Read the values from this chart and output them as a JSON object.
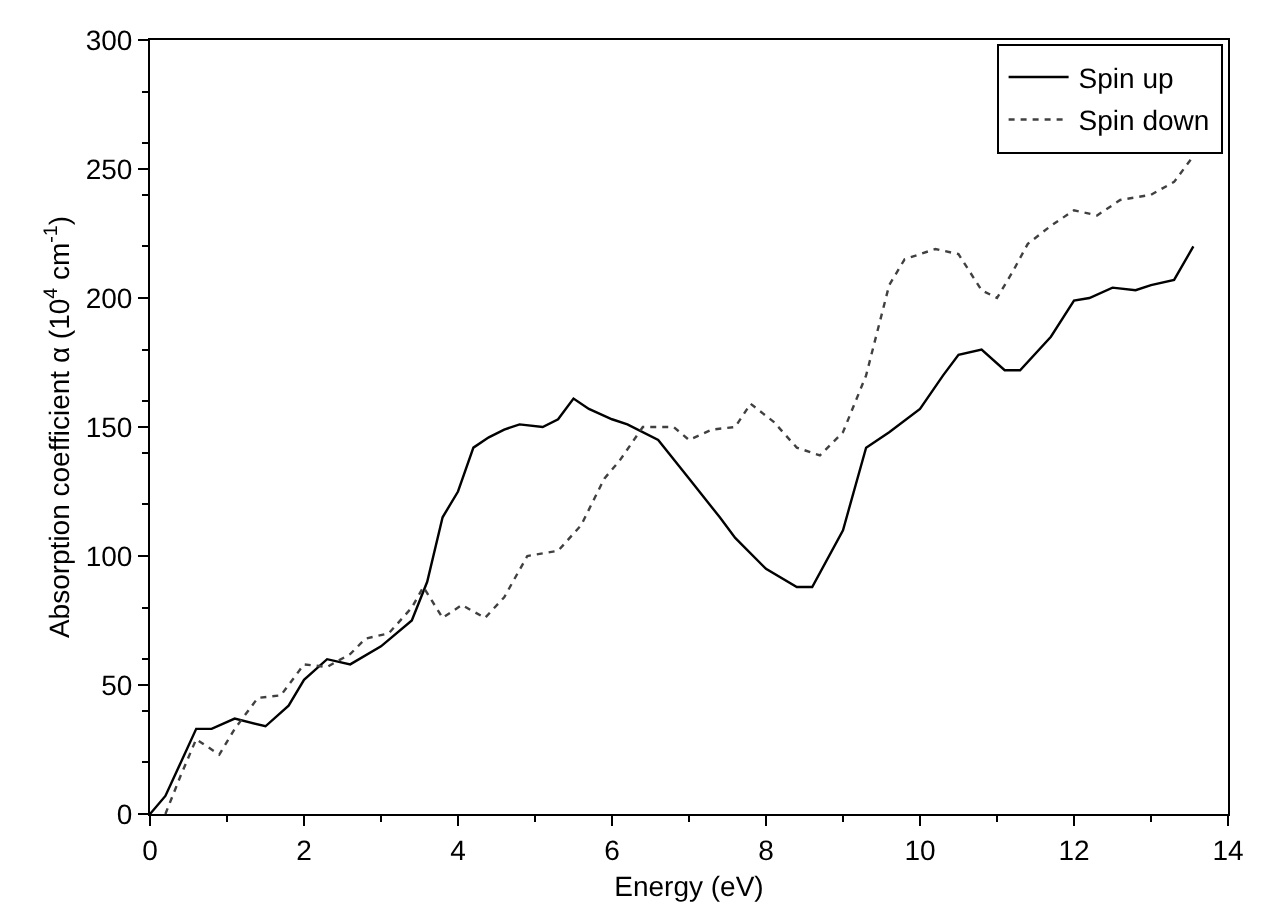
{
  "chart_data": {
    "type": "line",
    "xlabel": "Energy (eV)",
    "ylabel": "Absorption coefficient α (10$^{4}$ cm$^{-1}$)",
    "xlim": [
      0,
      14
    ],
    "xticks": [
      0,
      2,
      4,
      6,
      8,
      10,
      12,
      14
    ],
    "ylim": [
      0,
      300
    ],
    "yticks": [
      0,
      50,
      100,
      150,
      200,
      250,
      300
    ],
    "legend": "top right",
    "marker": "none",
    "series": [
      {
        "name": "Spin up",
        "color": "#000000",
        "line_style": "solid",
        "x": [
          0,
          0.2,
          0.4,
          0.6,
          0.8,
          1.1,
          1.5,
          1.8,
          2.0,
          2.3,
          2.6,
          3.0,
          3.4,
          3.6,
          3.8,
          4.0,
          4.2,
          4.4,
          4.6,
          4.8,
          5.1,
          5.3,
          5.5,
          5.7,
          6.0,
          6.2,
          6.6,
          7.0,
          7.4,
          7.6,
          8.0,
          8.4,
          8.6,
          9.0,
          9.3,
          9.6,
          10.0,
          10.3,
          10.5,
          10.8,
          11.1,
          11.3,
          11.7,
          12.0,
          12.2,
          12.5,
          12.8,
          13.0,
          13.3,
          13.55
        ],
        "values": [
          0,
          7,
          20,
          33,
          33,
          37,
          34,
          42,
          52,
          60,
          58,
          65,
          75,
          90,
          115,
          125,
          142,
          146,
          149,
          151,
          150,
          153,
          161,
          157,
          153,
          151,
          145,
          130,
          115,
          107,
          95,
          88,
          88,
          110,
          142,
          148,
          157,
          170,
          178,
          180,
          172,
          172,
          185,
          199,
          200,
          204,
          203,
          205,
          207,
          220
        ]
      },
      {
        "name": "Spin down",
        "color": "#404040",
        "line_style": "dotted",
        "x": [
          0.2,
          0.4,
          0.6,
          0.9,
          1.1,
          1.4,
          1.7,
          2.0,
          2.3,
          2.6,
          2.8,
          3.1,
          3.4,
          3.55,
          3.8,
          4.05,
          4.35,
          4.6,
          4.9,
          5.3,
          5.6,
          5.9,
          6.1,
          6.4,
          6.8,
          7.0,
          7.3,
          7.6,
          7.8,
          8.1,
          8.4,
          8.7,
          9.0,
          9.3,
          9.6,
          9.8,
          10.2,
          10.5,
          10.8,
          11.0,
          11.2,
          11.4,
          11.7,
          12.0,
          12.3,
          12.6,
          13.0,
          13.3,
          13.55
        ],
        "values": [
          0,
          15,
          29,
          23,
          33,
          45,
          46,
          58,
          57,
          62,
          68,
          70,
          80,
          88,
          76,
          81,
          76,
          84,
          100,
          102,
          112,
          130,
          137,
          150,
          150,
          145,
          149,
          150,
          159,
          152,
          142,
          139,
          148,
          170,
          205,
          215,
          219,
          217,
          203,
          200,
          210,
          221,
          228,
          234,
          232,
          238,
          240,
          245,
          255
        ]
      }
    ]
  }
}
